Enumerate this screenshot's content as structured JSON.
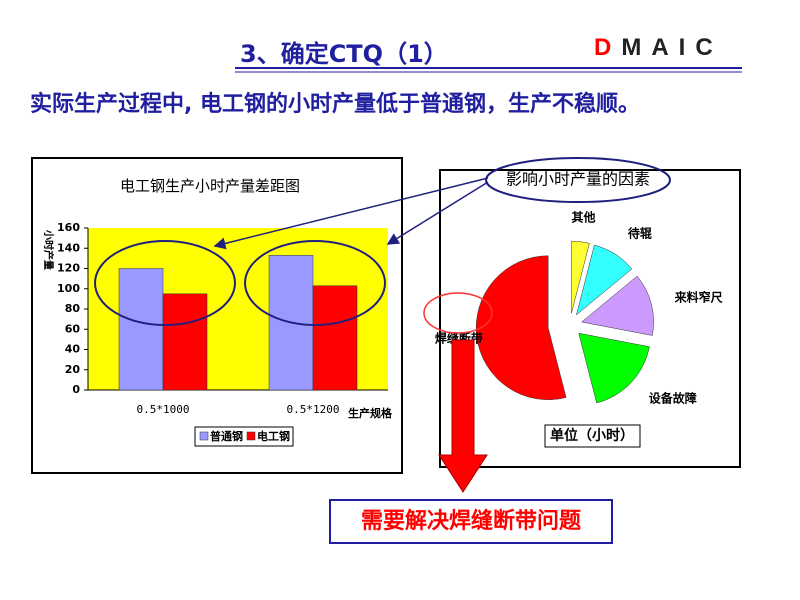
{
  "header": {
    "title": "3、确定CTQ（1）",
    "logo": "DMAIC",
    "subtitle": "实际生产过程中, 电工钢的小时产量低于普通钢，生产不稳顺。"
  },
  "chart_data": [
    {
      "type": "bar",
      "title": "电工钢生产小时产量差距图",
      "y_label": "小时产量",
      "x_label": "生产规格",
      "categories": [
        "0.5*1000",
        "0.5*1200"
      ],
      "series": [
        {
          "name": "普通钢",
          "color": "#9999ff",
          "values": [
            120,
            133
          ]
        },
        {
          "name": "电工钢",
          "color": "#ff0000",
          "values": [
            95,
            103
          ]
        }
      ],
      "ylim": [
        0,
        160
      ],
      "yticks": [
        0,
        20,
        40,
        60,
        80,
        100,
        120,
        140,
        160
      ],
      "background": "#ffff00",
      "legend": "bottom"
    },
    {
      "type": "pie",
      "title": "影响小时产量的因素",
      "subtitle": "单位（小时）",
      "categories": [
        "其他",
        "待辊",
        "来料窄尺",
        "设备故障",
        "焊缝断带"
      ],
      "values": [
        4,
        10,
        14,
        18,
        54
      ],
      "colors": [
        "#ffff33",
        "#33ffff",
        "#cc99ff",
        "#00ff00",
        "#ff0000"
      ],
      "exploded": true
    }
  ],
  "conclusion": "需要解决焊缝断带问题"
}
